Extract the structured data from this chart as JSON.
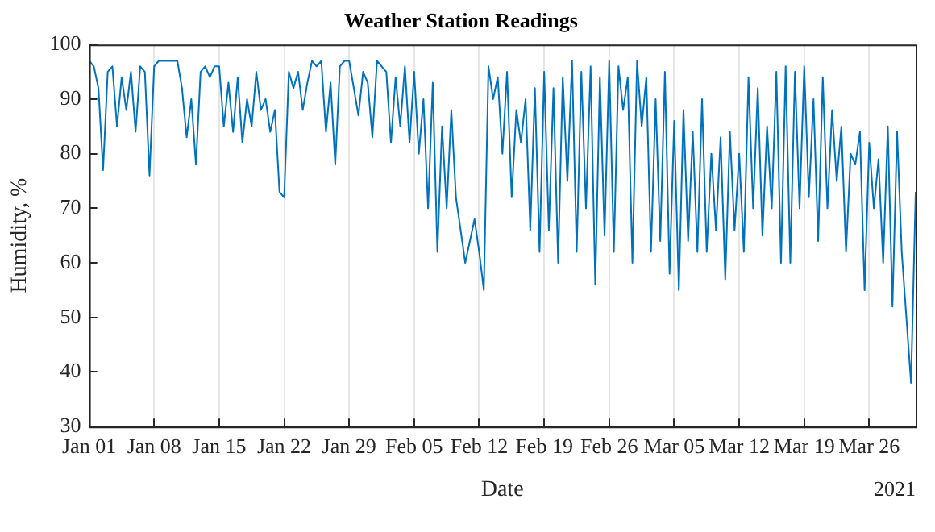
{
  "chart_data": {
    "type": "line",
    "title": "Weather Station Readings",
    "xlabel": "Date",
    "ylabel": "Humidity, %",
    "annotations": [
      "2021"
    ],
    "x": [
      "2021-01-01T00:00",
      "2021-01-01T12:00",
      "2021-01-02T00:00",
      "2021-01-02T12:00",
      "2021-01-03T00:00",
      "2021-01-03T12:00",
      "2021-01-04T00:00",
      "2021-01-04T12:00",
      "2021-01-05T00:00",
      "2021-01-05T12:00",
      "2021-01-06T00:00",
      "2021-01-06T12:00",
      "2021-01-07T00:00",
      "2021-01-07T12:00",
      "2021-01-08T00:00",
      "2021-01-08T12:00",
      "2021-01-09T00:00",
      "2021-01-09T12:00",
      "2021-01-10T00:00",
      "2021-01-10T12:00",
      "2021-01-11T00:00",
      "2021-01-11T12:00",
      "2021-01-12T00:00",
      "2021-01-12T12:00",
      "2021-01-13T00:00",
      "2021-01-13T12:00",
      "2021-01-14T00:00",
      "2021-01-14T12:00",
      "2021-01-15T00:00",
      "2021-01-15T12:00",
      "2021-01-16T00:00",
      "2021-01-16T12:00",
      "2021-01-17T00:00",
      "2021-01-17T12:00",
      "2021-01-18T00:00",
      "2021-01-18T12:00",
      "2021-01-19T00:00",
      "2021-01-19T12:00",
      "2021-01-20T00:00",
      "2021-01-20T12:00",
      "2021-01-21T00:00",
      "2021-01-21T12:00",
      "2021-01-22T00:00",
      "2021-01-22T12:00",
      "2021-01-23T00:00",
      "2021-01-23T12:00",
      "2021-01-24T00:00",
      "2021-01-24T12:00",
      "2021-01-25T00:00",
      "2021-01-25T12:00",
      "2021-01-26T00:00",
      "2021-01-26T12:00",
      "2021-01-27T00:00",
      "2021-01-27T12:00",
      "2021-01-28T00:00",
      "2021-01-28T12:00",
      "2021-01-29T00:00",
      "2021-01-29T12:00",
      "2021-01-30T00:00",
      "2021-01-30T12:00",
      "2021-01-31T00:00",
      "2021-01-31T12:00",
      "2021-02-01T00:00",
      "2021-02-01T12:00",
      "2021-02-02T00:00",
      "2021-02-02T12:00",
      "2021-02-03T00:00",
      "2021-02-03T12:00",
      "2021-02-04T00:00",
      "2021-02-04T12:00",
      "2021-02-05T00:00",
      "2021-02-05T12:00",
      "2021-02-06T00:00",
      "2021-02-06T12:00",
      "2021-02-07T00:00",
      "2021-02-07T12:00",
      "2021-02-08T00:00",
      "2021-02-08T12:00",
      "2021-02-09T00:00",
      "2021-02-09T12:00",
      "2021-02-10T00:00",
      "2021-02-10T12:00",
      "2021-02-11T00:00",
      "2021-02-11T12:00",
      "2021-02-12T00:00",
      "2021-02-12T12:00",
      "2021-02-13T00:00",
      "2021-02-13T12:00",
      "2021-02-14T00:00",
      "2021-02-14T12:00",
      "2021-02-15T00:00",
      "2021-02-15T12:00",
      "2021-02-16T00:00",
      "2021-02-16T12:00",
      "2021-02-17T00:00",
      "2021-02-17T12:00",
      "2021-02-18T00:00",
      "2021-02-18T12:00",
      "2021-02-19T00:00",
      "2021-02-19T12:00",
      "2021-02-20T00:00",
      "2021-02-20T12:00",
      "2021-02-21T00:00",
      "2021-02-21T12:00",
      "2021-02-22T00:00",
      "2021-02-22T12:00",
      "2021-02-23T00:00",
      "2021-02-23T12:00",
      "2021-02-24T00:00",
      "2021-02-24T12:00",
      "2021-02-25T00:00",
      "2021-02-25T12:00",
      "2021-02-26T00:00",
      "2021-02-26T12:00",
      "2021-02-27T00:00",
      "2021-02-27T12:00",
      "2021-02-28T00:00",
      "2021-02-28T12:00",
      "2021-03-01T00:00",
      "2021-03-01T12:00",
      "2021-03-02T00:00",
      "2021-03-02T12:00",
      "2021-03-03T00:00",
      "2021-03-03T12:00",
      "2021-03-04T00:00",
      "2021-03-04T12:00",
      "2021-03-05T00:00",
      "2021-03-05T12:00",
      "2021-03-06T00:00",
      "2021-03-06T12:00",
      "2021-03-07T00:00",
      "2021-03-07T12:00",
      "2021-03-08T00:00",
      "2021-03-08T12:00",
      "2021-03-09T00:00",
      "2021-03-09T12:00",
      "2021-03-10T00:00",
      "2021-03-10T12:00",
      "2021-03-11T00:00",
      "2021-03-11T12:00",
      "2021-03-12T00:00",
      "2021-03-12T12:00",
      "2021-03-13T00:00",
      "2021-03-13T12:00",
      "2021-03-14T00:00",
      "2021-03-14T12:00",
      "2021-03-15T00:00",
      "2021-03-15T12:00",
      "2021-03-16T00:00",
      "2021-03-16T12:00",
      "2021-03-17T00:00",
      "2021-03-17T12:00",
      "2021-03-18T00:00",
      "2021-03-18T12:00",
      "2021-03-19T00:00",
      "2021-03-19T12:00",
      "2021-03-20T00:00",
      "2021-03-20T12:00",
      "2021-03-21T00:00",
      "2021-03-21T12:00",
      "2021-03-22T00:00",
      "2021-03-22T12:00",
      "2021-03-23T00:00",
      "2021-03-23T12:00",
      "2021-03-24T00:00",
      "2021-03-24T12:00",
      "2021-03-25T00:00",
      "2021-03-25T12:00",
      "2021-03-26T00:00",
      "2021-03-26T12:00",
      "2021-03-27T00:00",
      "2021-03-27T12:00",
      "2021-03-28T00:00",
      "2021-03-28T12:00",
      "2021-03-29T00:00",
      "2021-03-29T12:00",
      "2021-03-30T00:00",
      "2021-03-30T12:00",
      "2021-03-31T00:00"
    ],
    "series": [
      {
        "color": "#0072bd",
        "values": [
          97,
          96,
          92,
          77,
          95,
          96,
          85,
          94,
          88,
          95,
          84,
          96,
          95,
          76,
          96,
          97,
          97,
          97,
          97,
          97,
          92,
          83,
          90,
          78,
          95,
          96,
          94,
          96,
          96,
          85,
          93,
          84,
          94,
          82,
          90,
          85,
          95,
          88,
          90,
          84,
          88,
          73,
          72,
          95,
          92,
          95,
          88,
          93,
          97,
          96,
          97,
          84,
          93,
          78,
          96,
          97,
          97,
          92,
          87,
          95,
          93,
          83,
          97,
          96,
          95,
          82,
          94,
          85,
          96,
          82,
          95,
          80,
          90,
          70,
          93,
          62,
          85,
          70,
          88,
          72,
          66,
          60,
          64,
          68,
          62,
          55,
          96,
          90,
          94,
          80,
          95,
          72,
          88,
          82,
          90,
          66,
          92,
          62,
          95,
          66,
          92,
          60,
          94,
          75,
          97,
          62,
          95,
          70,
          96,
          56,
          94,
          65,
          97,
          62,
          96,
          88,
          94,
          60,
          97,
          85,
          94,
          62,
          90,
          64,
          95,
          58,
          86,
          55,
          88,
          64,
          84,
          62,
          90,
          62,
          80,
          66,
          83,
          57,
          84,
          66,
          80,
          62,
          94,
          70,
          92,
          65,
          85,
          70,
          95,
          60,
          96,
          60,
          95,
          70,
          96,
          72,
          90,
          64,
          94,
          70,
          88,
          75,
          85,
          62,
          80,
          78,
          84,
          55,
          82,
          70,
          79,
          60,
          85,
          52,
          84,
          62,
          50,
          38,
          73
        ]
      }
    ],
    "xlim": [
      "2021-01-01",
      "2021-03-31"
    ],
    "xticks": [
      {
        "value": "2021-01-01",
        "label": "Jan 01"
      },
      {
        "value": "2021-01-08",
        "label": "Jan 08"
      },
      {
        "value": "2021-01-15",
        "label": "Jan 15"
      },
      {
        "value": "2021-01-22",
        "label": "Jan 22"
      },
      {
        "value": "2021-01-29",
        "label": "Jan 29"
      },
      {
        "value": "2021-02-05",
        "label": "Feb 05"
      },
      {
        "value": "2021-02-12",
        "label": "Feb 12"
      },
      {
        "value": "2021-02-19",
        "label": "Feb 19"
      },
      {
        "value": "2021-02-26",
        "label": "Feb 26"
      },
      {
        "value": "2021-03-05",
        "label": "Mar 05"
      },
      {
        "value": "2021-03-12",
        "label": "Mar 12"
      },
      {
        "value": "2021-03-19",
        "label": "Mar 19"
      },
      {
        "value": "2021-03-26",
        "label": "Mar 26"
      }
    ],
    "ylim": [
      30,
      100
    ],
    "yticks": [
      30,
      40,
      50,
      60,
      70,
      80,
      90,
      100
    ],
    "grid": "x",
    "legend": false,
    "marker": "none",
    "line_style": "solid"
  }
}
